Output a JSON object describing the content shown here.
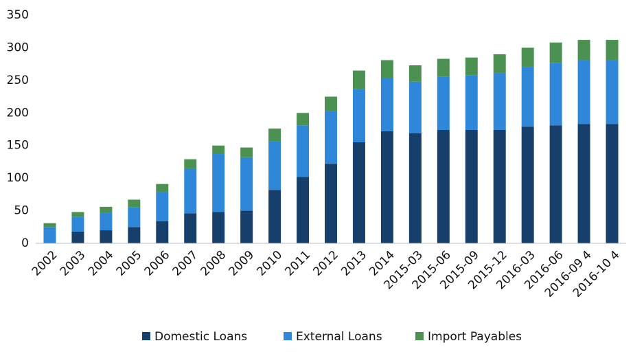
{
  "chart_data": {
    "type": "stacked-bar",
    "categories": [
      "2002",
      "2003",
      "2004",
      "2005",
      "2006",
      "2007",
      "2008",
      "2009",
      "2010",
      "2011",
      "2012",
      "2013",
      "2014",
      "2015-03",
      "2015-06",
      "2015-09",
      "2015-12",
      "2016-03",
      "2016-06",
      "2016-09 4",
      "2016-10 4"
    ],
    "series": [
      {
        "name": "Domestic Loans",
        "color": "#173f6c",
        "values": [
          0,
          18,
          20,
          25,
          34,
          46,
          48,
          50,
          82,
          102,
          122,
          155,
          172,
          169,
          174,
          174,
          174,
          179,
          181,
          183,
          183
        ]
      },
      {
        "name": "External Loans",
        "color": "#2e87d8",
        "values": [
          25,
          23,
          27,
          30,
          45,
          69,
          89,
          82,
          75,
          79,
          81,
          82,
          81,
          79,
          82,
          84,
          87,
          91,
          96,
          98,
          98
        ]
      },
      {
        "name": "Import Payables",
        "color": "#4a9152",
        "values": [
          6,
          7,
          9,
          12,
          12,
          14,
          13,
          15,
          19,
          19,
          22,
          28,
          28,
          25,
          27,
          27,
          29,
          30,
          31,
          31,
          31
        ]
      }
    ],
    "ylim": [
      0,
      350
    ],
    "yticks": [
      0,
      50,
      100,
      150,
      200,
      250,
      300,
      350
    ],
    "grid": false,
    "legend": "bottom"
  }
}
